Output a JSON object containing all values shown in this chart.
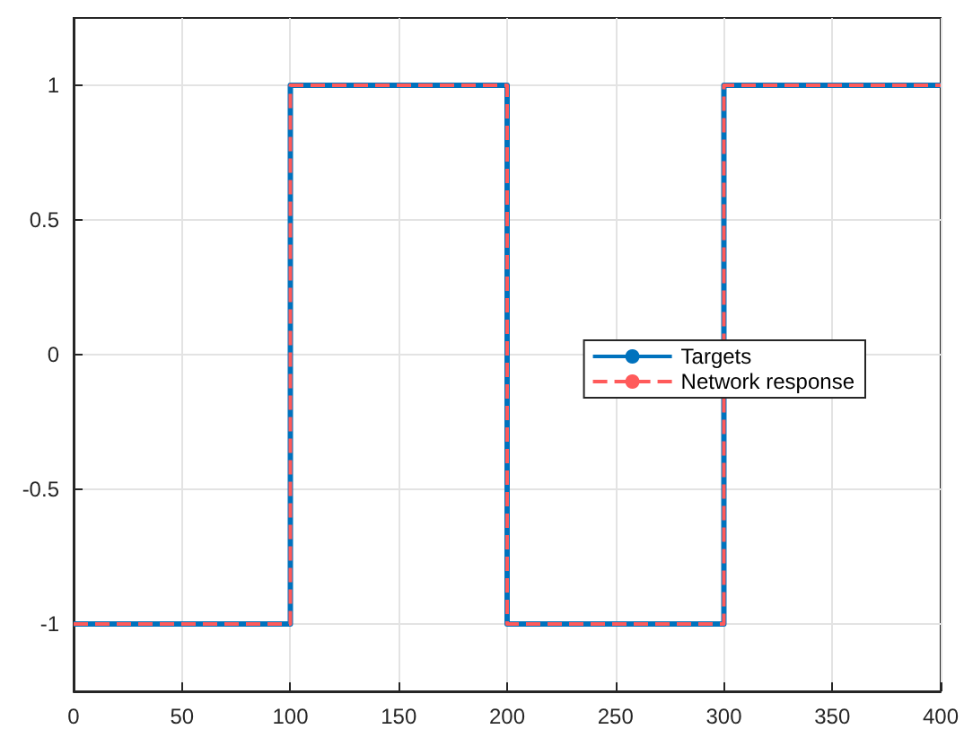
{
  "chart_data": {
    "type": "line",
    "x": [
      0,
      100,
      100,
      200,
      200,
      300,
      300,
      400
    ],
    "series": [
      {
        "name": "Targets",
        "color": "#0072bd",
        "values": [
          -1,
          -1,
          1,
          1,
          -1,
          -1,
          1,
          1
        ],
        "line_style": "solid"
      },
      {
        "name": "Network response",
        "color": "#ff5a5a",
        "values": [
          -1,
          -1,
          1,
          1,
          -1,
          -1,
          1,
          1
        ],
        "line_style": "dashed"
      }
    ],
    "xlim": [
      0,
      400
    ],
    "xticks": [
      0,
      50,
      100,
      150,
      200,
      250,
      300,
      350,
      400
    ],
    "ylim": [
      -1.25,
      1.25
    ],
    "yticks": [
      -1,
      -0.5,
      0,
      0.5,
      1
    ],
    "grid": true,
    "legend": "right",
    "marker": "none"
  }
}
